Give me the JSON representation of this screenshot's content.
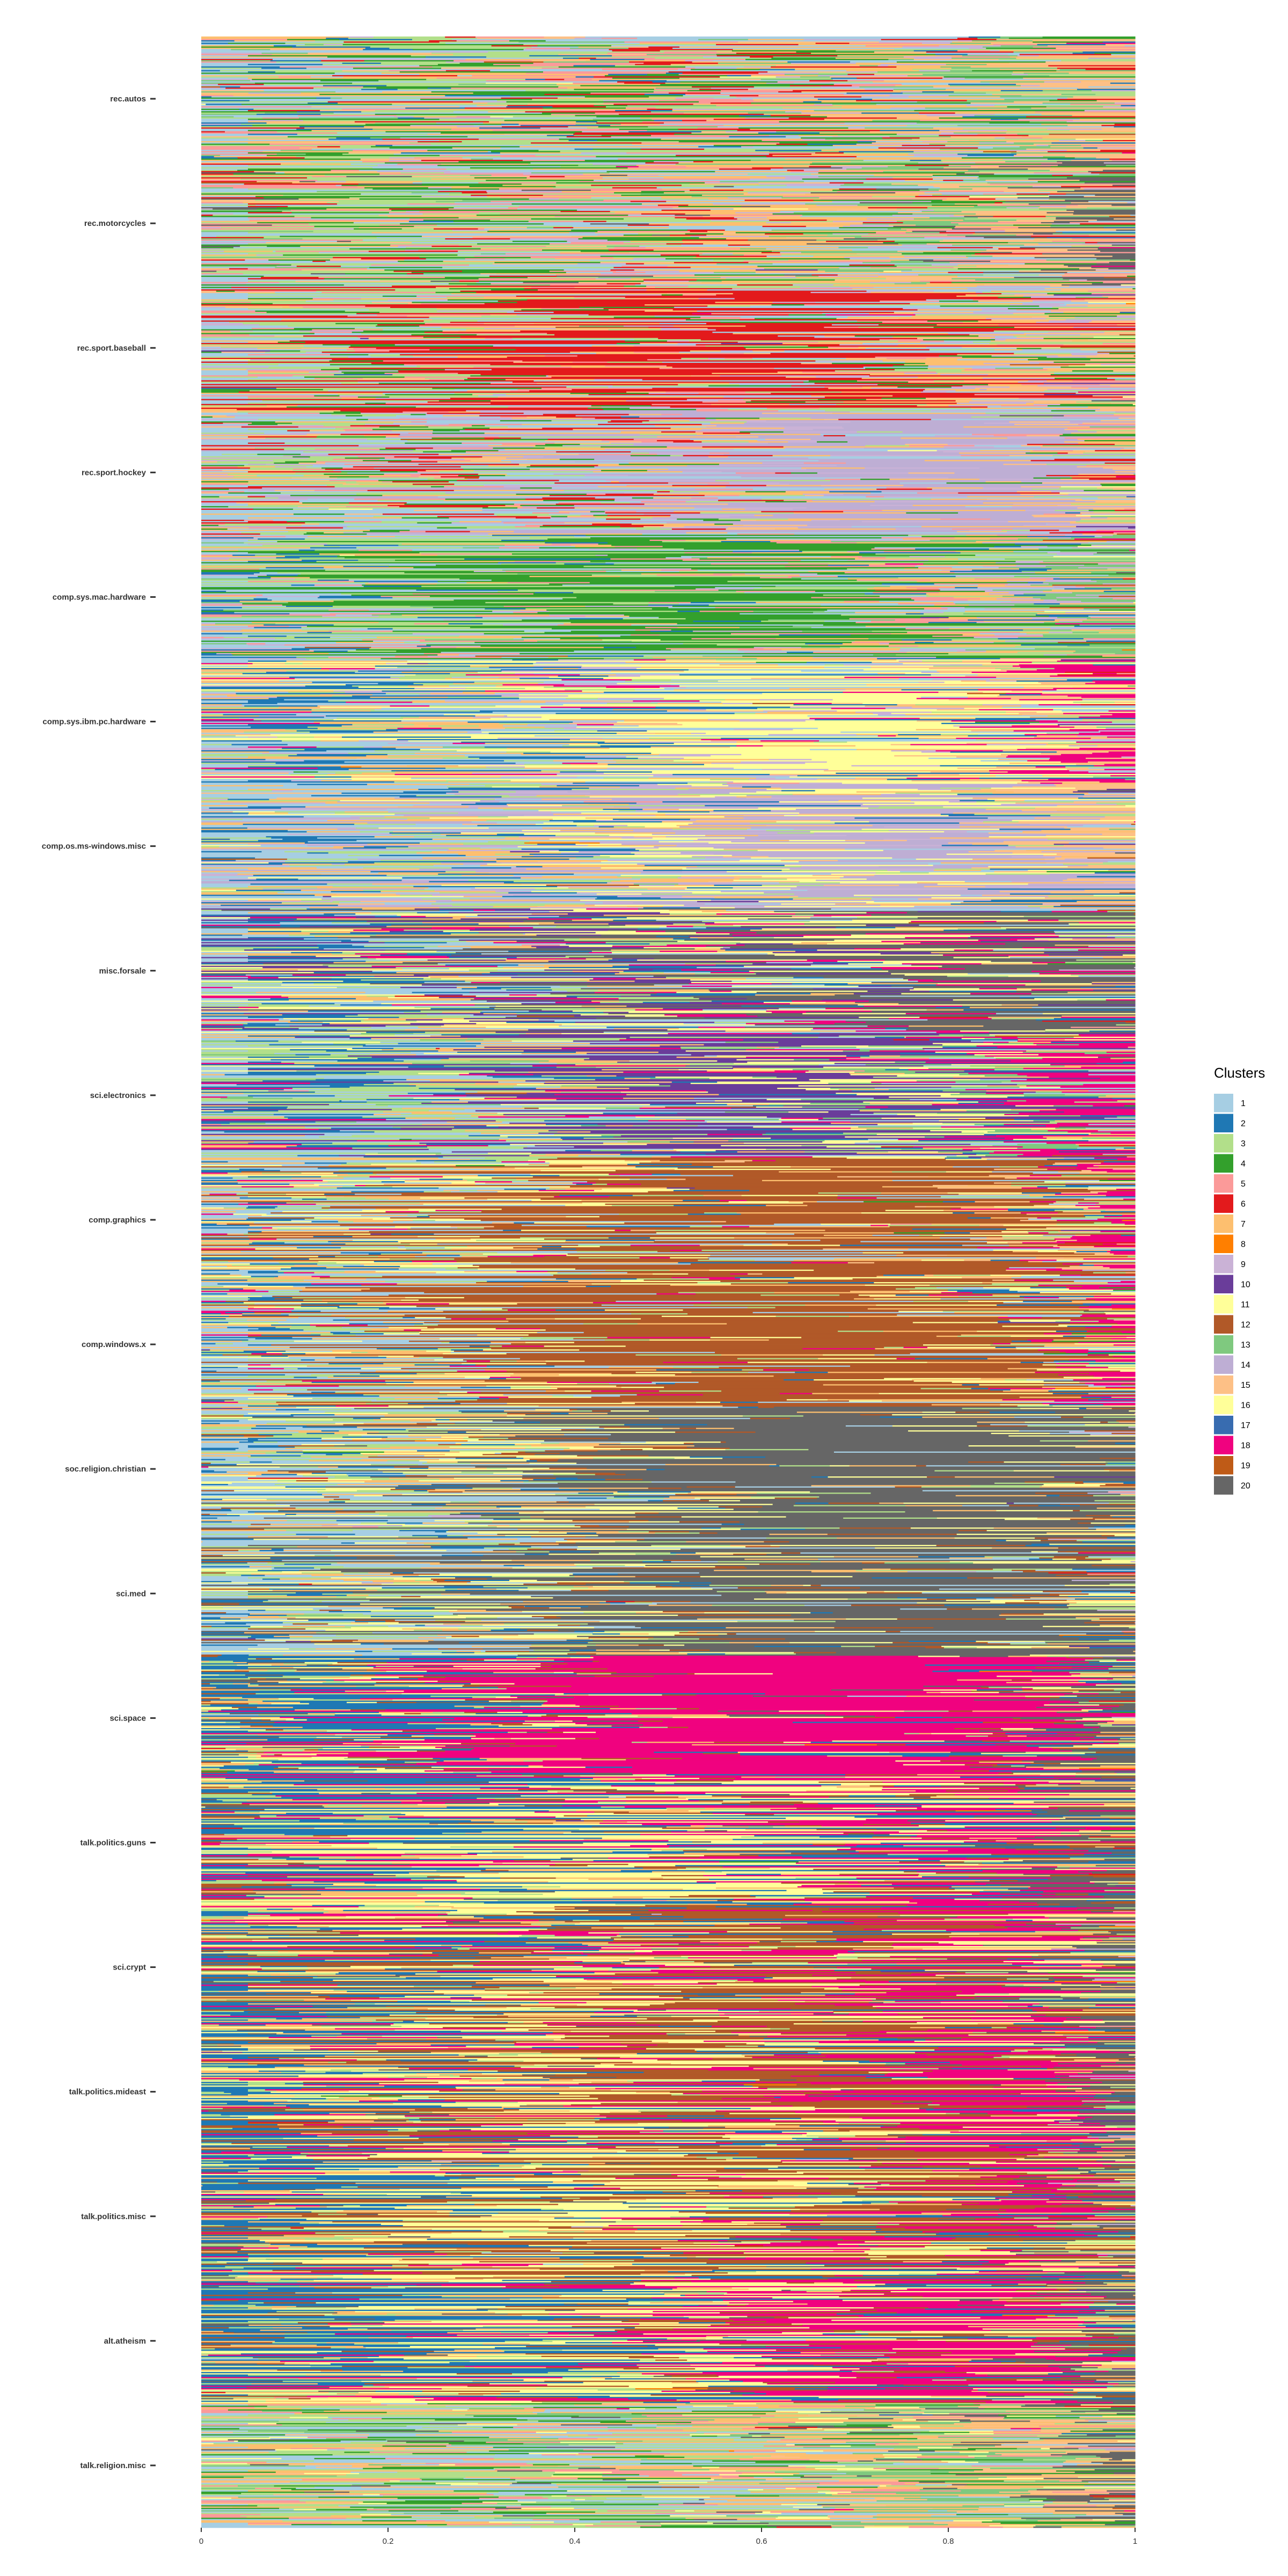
{
  "chart_data": {
    "type": "bar",
    "orientation": "horizontal-stacked",
    "categories": [
      "rec.autos",
      "rec.motorcycles",
      "rec.sport.baseball",
      "rec.sport.hockey",
      "comp.sys.mac.hardware",
      "comp.sys.ibm.pc.hardware",
      "comp.os.ms-windows.misc",
      "misc.forsale",
      "sci.electronics",
      "comp.graphics",
      "comp.windows.x",
      "soc.religion.christian",
      "sci.med",
      "sci.space",
      "talk.politics.guns",
      "sci.crypt",
      "talk.politics.mideast",
      "talk.politics.misc",
      "alt.atheism",
      "talk.religion.misc"
    ],
    "xlim": [
      0,
      1
    ],
    "x_ticks": [
      "0",
      "0.2",
      "0.4",
      "0.6",
      "0.8",
      "1"
    ],
    "x_tick_values": [
      0,
      0.2,
      0.4,
      0.6,
      0.8,
      1
    ],
    "grid": false,
    "legend": {
      "title": "Clusters",
      "position": "right",
      "labels": [
        "1",
        "2",
        "3",
        "4",
        "5",
        "6",
        "7",
        "8",
        "9",
        "10",
        "11",
        "12",
        "13",
        "14",
        "15",
        "16",
        "17",
        "18",
        "19",
        "20"
      ],
      "colors": [
        "#A6CEE3",
        "#1F78B4",
        "#B2DF8A",
        "#33A02C",
        "#FB9A99",
        "#E31A1C",
        "#FDBF6F",
        "#FF7F00",
        "#CAB2D6",
        "#6A3D9A",
        "#FFFF99",
        "#B15928",
        "#7FC97F",
        "#BEAED4",
        "#FDC086",
        "#FFFF99",
        "#386CB0",
        "#F0027F",
        "#BF5B17",
        "#666666"
      ]
    },
    "series_by_category": [
      {
        "category": "rec.autos",
        "mean_proportions": {
          "1": 0.1,
          "3": 0.15,
          "4": 0.14,
          "5": 0.1,
          "6": 0.08,
          "7": 0.15,
          "15": 0.1,
          "13": 0.08,
          "2": 0.05,
          "9": 0.05
        }
      },
      {
        "category": "rec.motorcycles",
        "mean_proportions": {
          "1": 0.12,
          "3": 0.15,
          "4": 0.12,
          "5": 0.12,
          "7": 0.15,
          "15": 0.1,
          "13": 0.08,
          "20": 0.06,
          "9": 0.05,
          "6": 0.05
        }
      },
      {
        "category": "rec.sport.baseball",
        "mean_proportions": {
          "6": 0.38,
          "1": 0.12,
          "3": 0.12,
          "4": 0.08,
          "5": 0.08,
          "7": 0.1,
          "15": 0.06,
          "9": 0.06
        }
      },
      {
        "category": "rec.sport.hockey",
        "mean_proportions": {
          "14": 0.35,
          "9": 0.1,
          "1": 0.12,
          "3": 0.1,
          "6": 0.08,
          "7": 0.1,
          "15": 0.05,
          "4": 0.05,
          "5": 0.05
        }
      },
      {
        "category": "comp.sys.mac.hardware",
        "mean_proportions": {
          "4": 0.35,
          "3": 0.15,
          "1": 0.12,
          "7": 0.1,
          "5": 0.08,
          "13": 0.08,
          "9": 0.06,
          "2": 0.06
        }
      },
      {
        "category": "comp.sys.ibm.pc.hardware",
        "mean_proportions": {
          "11": 0.38,
          "2": 0.15,
          "18": 0.08,
          "7": 0.1,
          "15": 0.08,
          "9": 0.08,
          "3": 0.07,
          "1": 0.06
        }
      },
      {
        "category": "comp.os.ms-windows.misc",
        "mean_proportions": {
          "14": 0.3,
          "9": 0.1,
          "11": 0.12,
          "7": 0.12,
          "15": 0.1,
          "2": 0.1,
          "3": 0.08,
          "1": 0.08
        }
      },
      {
        "category": "misc.forsale",
        "mean_proportions": {
          "20": 0.3,
          "10": 0.12,
          "11": 0.15,
          "2": 0.1,
          "18": 0.08,
          "7": 0.1,
          "3": 0.08,
          "1": 0.07
        }
      },
      {
        "category": "sci.electronics",
        "mean_proportions": {
          "10": 0.3,
          "3": 0.15,
          "18": 0.12,
          "11": 0.1,
          "2": 0.1,
          "7": 0.08,
          "1": 0.08,
          "13": 0.07
        }
      },
      {
        "category": "comp.graphics",
        "mean_proportions": {
          "12": 0.55,
          "7": 0.1,
          "11": 0.1,
          "3": 0.06,
          "2": 0.06,
          "1": 0.05,
          "18": 0.04,
          "15": 0.04
        }
      },
      {
        "category": "comp.windows.x",
        "mean_proportions": {
          "12": 0.6,
          "7": 0.1,
          "11": 0.08,
          "3": 0.06,
          "18": 0.05,
          "2": 0.05,
          "1": 0.06
        }
      },
      {
        "category": "soc.religion.christian",
        "mean_proportions": {
          "20": 0.6,
          "11": 0.1,
          "7": 0.08,
          "3": 0.08,
          "1": 0.06,
          "2": 0.04,
          "12": 0.04
        }
      },
      {
        "category": "sci.med",
        "mean_proportions": {
          "20": 0.55,
          "11": 0.12,
          "7": 0.08,
          "3": 0.08,
          "1": 0.06,
          "2": 0.06,
          "12": 0.05
        }
      },
      {
        "category": "sci.space",
        "mean_proportions": {
          "18": 0.62,
          "20": 0.08,
          "2": 0.08,
          "11": 0.08,
          "7": 0.06,
          "3": 0.04,
          "12": 0.04
        }
      },
      {
        "category": "talk.politics.guns",
        "mean_proportions": {
          "11": 0.3,
          "18": 0.2,
          "2": 0.2,
          "7": 0.1,
          "20": 0.08,
          "3": 0.06,
          "12": 0.06
        }
      },
      {
        "category": "sci.crypt",
        "mean_proportions": {
          "18": 0.2,
          "12": 0.3,
          "11": 0.2,
          "7": 0.1,
          "2": 0.08,
          "20": 0.06,
          "3": 0.06
        }
      },
      {
        "category": "talk.politics.mideast",
        "mean_proportions": {
          "18": 0.25,
          "12": 0.3,
          "11": 0.2,
          "7": 0.1,
          "2": 0.06,
          "20": 0.05,
          "3": 0.04
        }
      },
      {
        "category": "talk.politics.misc",
        "mean_proportions": {
          "12": 0.3,
          "11": 0.28,
          "18": 0.12,
          "7": 0.1,
          "2": 0.1,
          "20": 0.05,
          "3": 0.05
        }
      },
      {
        "category": "alt.atheism",
        "mean_proportions": {
          "18": 0.25,
          "11": 0.25,
          "2": 0.2,
          "12": 0.1,
          "7": 0.08,
          "20": 0.06,
          "3": 0.06
        }
      },
      {
        "category": "talk.religion.misc",
        "mean_proportions": {
          "1": 0.2,
          "7": 0.18,
          "3": 0.15,
          "13": 0.12,
          "4": 0.1,
          "5": 0.08,
          "15": 0.08,
          "20": 0.05,
          "11": 0.04
        }
      }
    ]
  }
}
